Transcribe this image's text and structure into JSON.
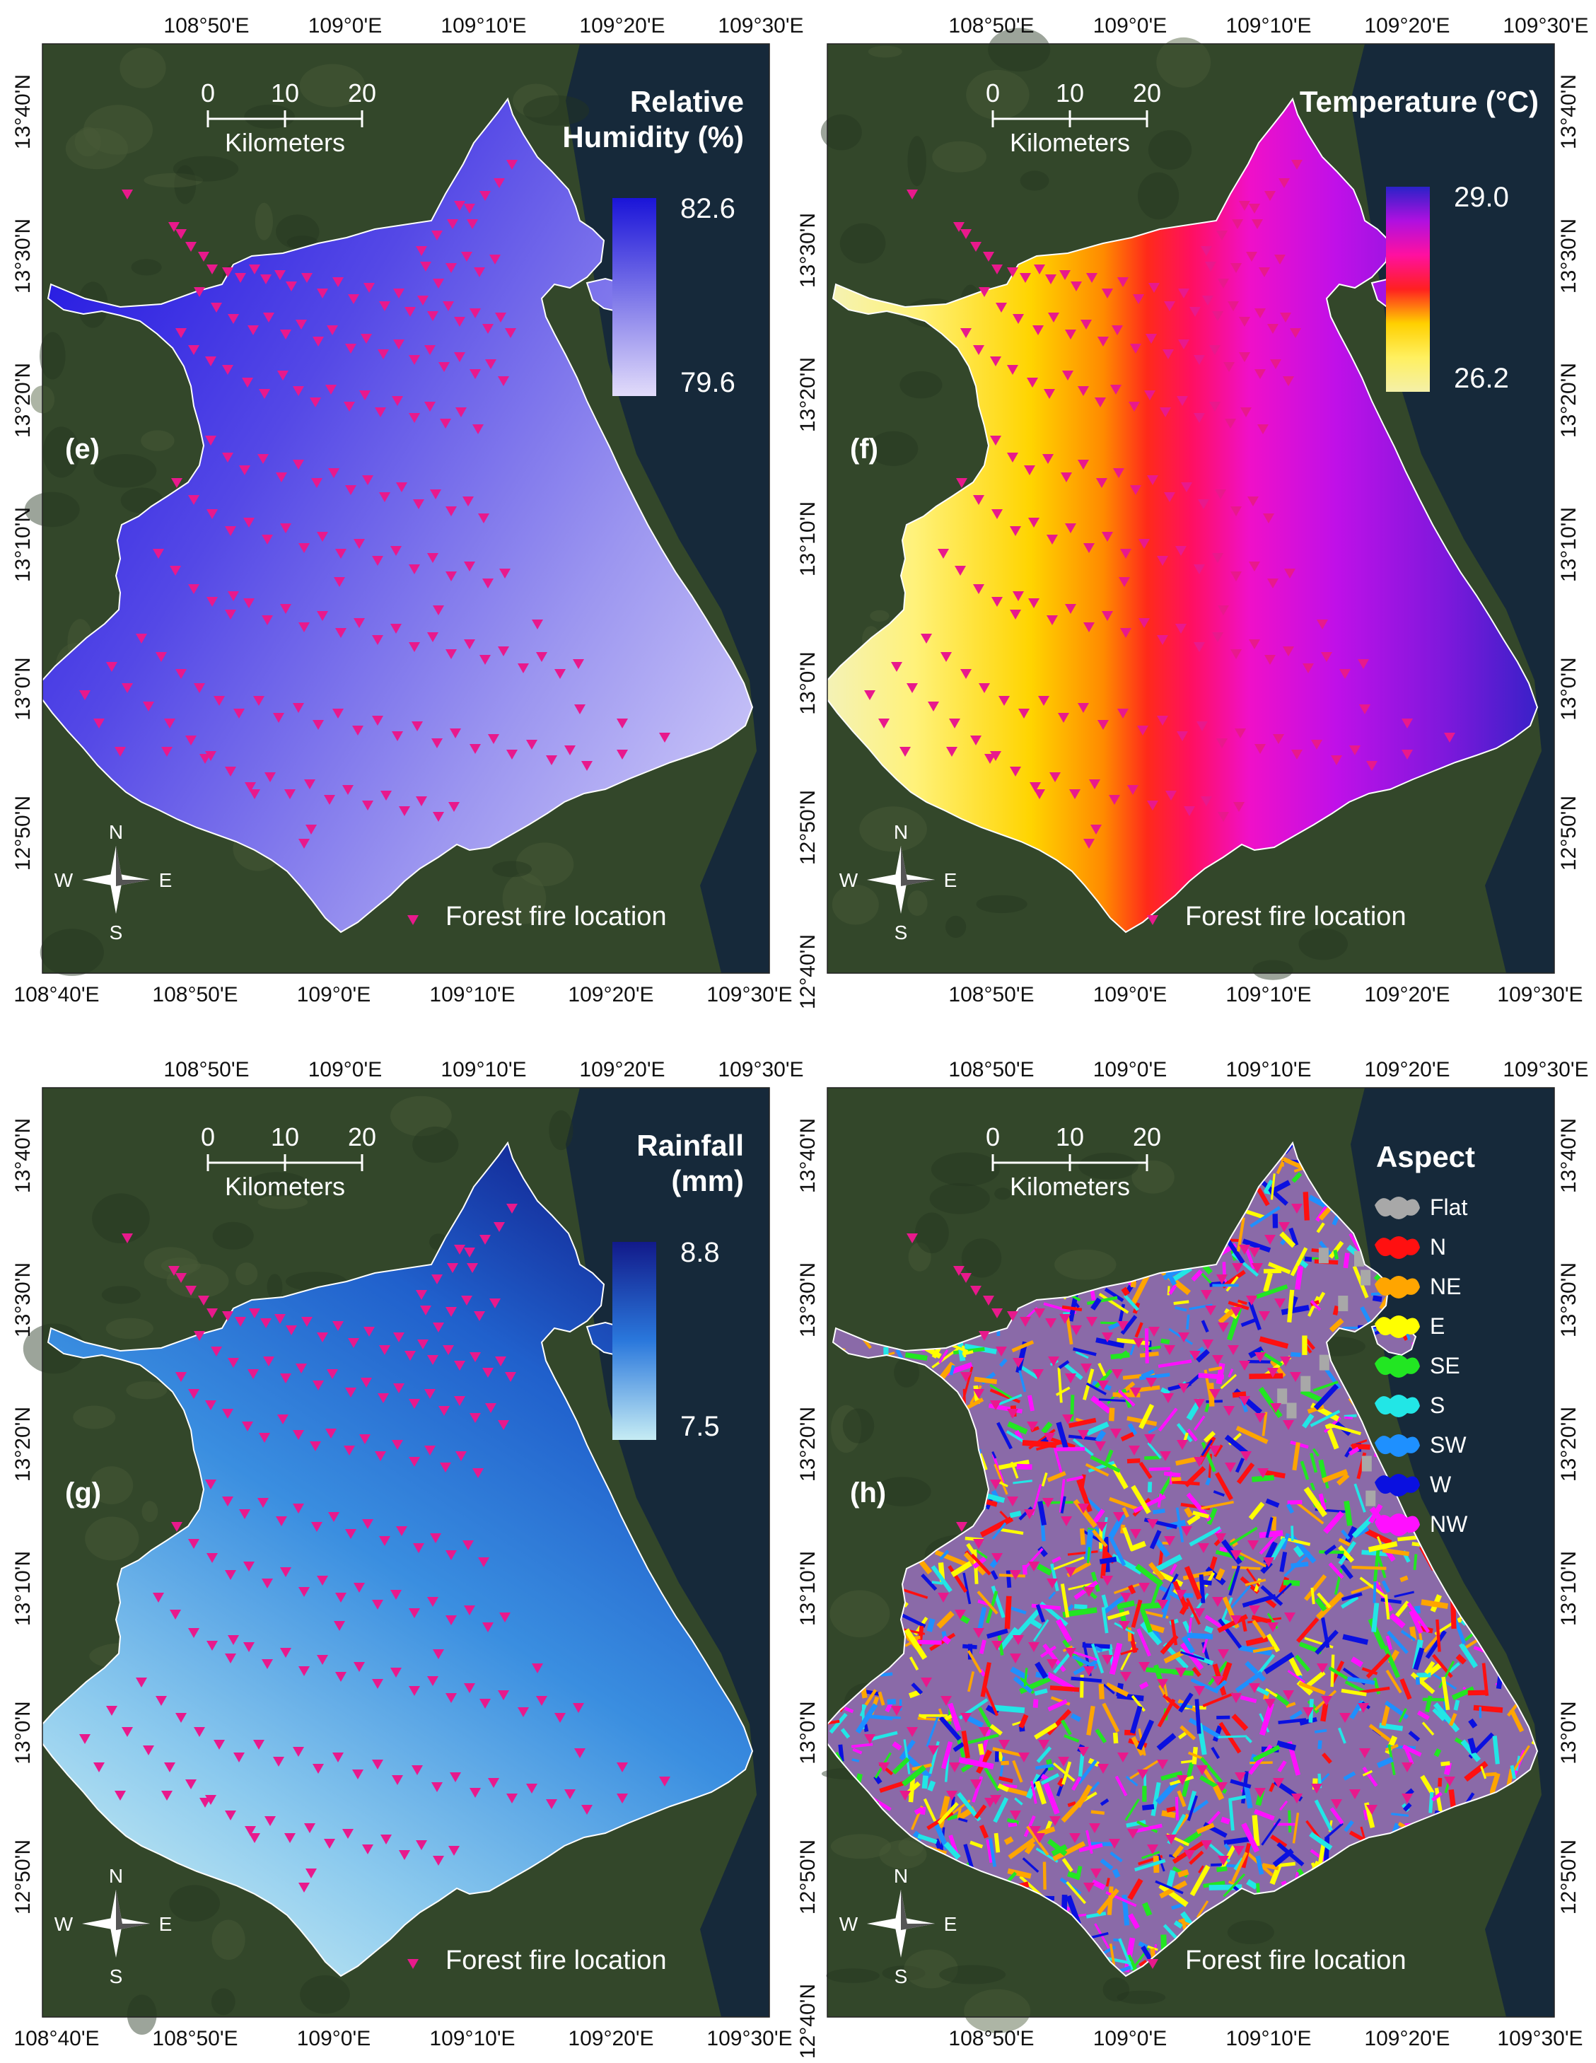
{
  "figure": {
    "panels": [
      {
        "id": "e",
        "label": "(e)",
        "legend_title": [
          "Relative",
          "Humidity (%)"
        ],
        "legend_type": "gradient",
        "legend_max": "82.6",
        "legend_min": "79.6",
        "gradient_colors": [
          "#1a14d8",
          "#e2dcfa"
        ],
        "map_fill": "humidity",
        "top_ticks": [
          "108°50'E",
          "109°0'E",
          "109°10'E",
          "109°20'E",
          "109°30'E"
        ],
        "bottom_ticks": [
          "108°40'E",
          "108°50'E",
          "109°0'E",
          "109°10'E",
          "109°20'E",
          "109°30'E"
        ],
        "left_ticks": [
          "13°40'N",
          "13°30'N",
          "13°20'N",
          "13°10'N",
          "13°0'N",
          "12°50'N"
        ],
        "right_ticks": []
      },
      {
        "id": "f",
        "label": "(f)",
        "legend_title": [
          "Temperature (°C)"
        ],
        "legend_type": "gradient",
        "legend_max": "29.0",
        "legend_min": "26.2",
        "gradient_colors": [
          "#2a22c8",
          "#b010e0",
          "#ff10a0",
          "#ff2020",
          "#ffd000",
          "#fff060",
          "#f4f0a8"
        ],
        "map_fill": "temperature",
        "top_ticks": [
          "108°50'E",
          "109°0'E",
          "109°10'E",
          "109°20'E",
          "109°30'E"
        ],
        "bottom_ticks": [
          "108°50'E",
          "109°0'E",
          "109°10'E",
          "109°20'E",
          "109°30'E"
        ],
        "left_ticks": [
          "13°30'N",
          "13°20'N",
          "13°10'N",
          "13°0'N",
          "12°50'N",
          "12°40'N"
        ],
        "right_ticks": [
          "13°40'N",
          "13°30'N",
          "13°20'N",
          "13°10'N",
          "13°0'N",
          "12°50'N"
        ]
      },
      {
        "id": "g",
        "label": "(g)",
        "legend_title": [
          "Rainfall",
          "(mm)"
        ],
        "legend_type": "gradient",
        "legend_max": "8.8",
        "legend_min": "7.5",
        "gradient_colors": [
          "#121a8a",
          "#2a78dc",
          "#c6ecf4"
        ],
        "map_fill": "rainfall",
        "top_ticks": [
          "108°50'E",
          "109°0'E",
          "109°10'E",
          "109°20'E",
          "109°30'E"
        ],
        "bottom_ticks": [
          "108°40'E",
          "108°50'E",
          "109°0'E",
          "109°10'E",
          "109°20'E",
          "109°30'E"
        ],
        "left_ticks": [
          "13°40'N",
          "13°30'N",
          "13°20'N",
          "13°10'N",
          "13°0'N",
          "12°50'N"
        ],
        "right_ticks": []
      },
      {
        "id": "h",
        "label": "(h)",
        "legend_title": [
          "Aspect"
        ],
        "legend_type": "categorical",
        "categories": [
          {
            "name": "Flat",
            "color": "#a8a8a8"
          },
          {
            "name": "N",
            "color": "#ff1010"
          },
          {
            "name": "NE",
            "color": "#ffa500"
          },
          {
            "name": "E",
            "color": "#ffff00"
          },
          {
            "name": "SE",
            "color": "#22e622"
          },
          {
            "name": "S",
            "color": "#22e6e6"
          },
          {
            "name": "SW",
            "color": "#1e90ff"
          },
          {
            "name": "W",
            "color": "#0a10e0"
          },
          {
            "name": "NW",
            "color": "#ff10ff"
          }
        ],
        "map_fill": "aspect",
        "top_ticks": [
          "108°50'E",
          "109°0'E",
          "109°10'E",
          "109°20'E",
          "109°30'E"
        ],
        "bottom_ticks": [
          "108°50'E",
          "109°0'E",
          "109°10'E",
          "109°20'E",
          "109°30'E"
        ],
        "left_ticks": [
          "13°40'N",
          "13°30'N",
          "13°20'N",
          "13°10'N",
          "13°0'N",
          "12°50'N",
          "12°40'N"
        ],
        "right_ticks": [
          "13°40'N",
          "13°30'N",
          "13°20'N",
          "13°10'N",
          "13°0'N",
          "12°50'N"
        ]
      }
    ],
    "scale_bar": {
      "ticks": [
        "0",
        "10",
        "20"
      ],
      "unit": "Kilometers"
    },
    "north_arrow": {
      "N": "N",
      "S": "S",
      "E": "E",
      "W": "W"
    },
    "point_legend": "Forest fire location",
    "point_color": "#e8198c",
    "colors": {
      "satellite_land": "#33472a",
      "satellite_sea": "#16293a",
      "boundary": "#ffffff"
    }
  }
}
